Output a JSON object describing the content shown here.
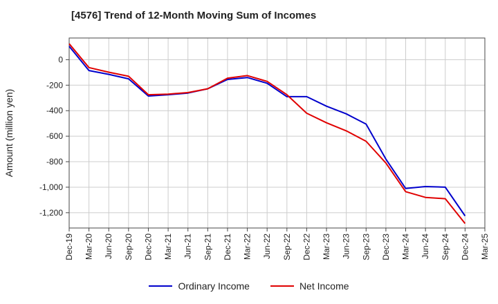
{
  "title": "[4576]  Trend of 12-Month Moving Sum of Incomes",
  "chart_data": {
    "type": "line",
    "title": "[4576]  Trend of 12-Month Moving Sum of Incomes",
    "xlabel": "",
    "ylabel": "Amount (million yen)",
    "categories": [
      "Dec-19",
      "Mar-20",
      "Jun-20",
      "Sep-20",
      "Dec-20",
      "Mar-21",
      "Jun-21",
      "Sep-21",
      "Dec-21",
      "Mar-22",
      "Jun-22",
      "Sep-22",
      "Dec-22",
      "Mar-23",
      "Jun-23",
      "Sep-23",
      "Dec-23",
      "Mar-24",
      "Jun-24",
      "Sep-24",
      "Dec-24",
      "Mar-25"
    ],
    "ylim": [
      -1320,
      170
    ],
    "yticks": [
      0,
      -200,
      -400,
      -600,
      -800,
      -1000,
      -1200
    ],
    "ytick_labels": [
      "0",
      "-200",
      "-400",
      "-600",
      "-800",
      "-1,000",
      "-1,200"
    ],
    "grid": true,
    "legend_position": "bottom",
    "series": [
      {
        "name": "Ordinary Income",
        "color": "#0000cc",
        "values": [
          105,
          -85,
          -115,
          -150,
          -285,
          -275,
          -262,
          -228,
          -155,
          -140,
          -185,
          -290,
          -290,
          -365,
          -425,
          -505,
          -780,
          -1010,
          -995,
          -1000,
          -1225,
          null
        ]
      },
      {
        "name": "Net Income",
        "color": "#e00000",
        "values": [
          125,
          -62,
          -98,
          -130,
          -275,
          -270,
          -258,
          -228,
          -145,
          -125,
          -170,
          -275,
          -420,
          -495,
          -558,
          -640,
          -810,
          -1035,
          -1080,
          -1090,
          -1285,
          null
        ]
      }
    ]
  }
}
